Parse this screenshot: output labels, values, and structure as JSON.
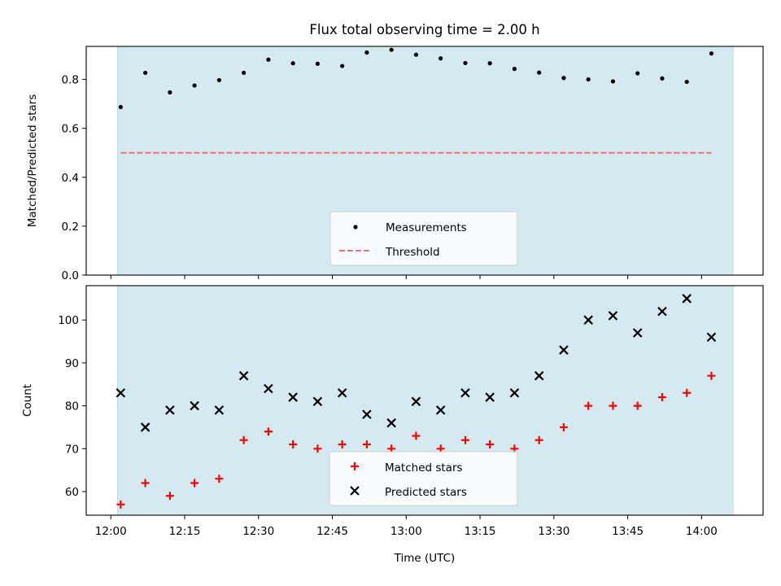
{
  "chart_data": [
    {
      "type": "scatter",
      "title": "Flux total observing time = 2.00 h",
      "xlabel": "",
      "ylabel": "Matched/Predicted stars",
      "ylim": [
        0,
        0.935
      ],
      "yticks": [
        0.0,
        0.2,
        0.4,
        0.6,
        0.8
      ],
      "ytick_labels": [
        "0.0",
        "0.2",
        "0.4",
        "0.6",
        "0.8"
      ],
      "x": [
        "12:02",
        "12:07",
        "12:12",
        "12:17",
        "12:22",
        "12:27",
        "12:32",
        "12:37",
        "12:42",
        "12:47",
        "12:52",
        "12:57",
        "13:02",
        "13:07",
        "13:12",
        "13:17",
        "13:22",
        "13:27",
        "13:32",
        "13:37",
        "13:42",
        "13:47",
        "13:52",
        "13:57",
        "14:02"
      ],
      "series": [
        {
          "name": "Measurements",
          "marker": "dot",
          "color": "#000000",
          "values": [
            0.687,
            0.827,
            0.747,
            0.775,
            0.797,
            0.827,
            0.881,
            0.866,
            0.864,
            0.855,
            0.91,
            0.921,
            0.901,
            0.886,
            0.867,
            0.866,
            0.843,
            0.828,
            0.806,
            0.8,
            0.792,
            0.825,
            0.804,
            0.79,
            0.906
          ]
        },
        {
          "name": "Threshold",
          "style": "dashed",
          "color": "#f07070",
          "values": [
            0.5
          ]
        }
      ],
      "shaded_region": {
        "from": "12:02",
        "to": "14:02",
        "color": "#d4eaf0"
      },
      "legend": "lower-center",
      "grid": false
    },
    {
      "type": "scatter",
      "title": "",
      "xlabel": "Time (UTC)",
      "ylabel": "Count",
      "ylim": [
        54.5,
        108
      ],
      "yticks": [
        60,
        70,
        80,
        90,
        100
      ],
      "ytick_labels": [
        "60",
        "70",
        "80",
        "90",
        "100"
      ],
      "xticks": [
        "12:00",
        "12:15",
        "12:30",
        "12:45",
        "13:00",
        "13:15",
        "13:30",
        "13:45",
        "14:00"
      ],
      "x": [
        "12:02",
        "12:07",
        "12:12",
        "12:17",
        "12:22",
        "12:27",
        "12:32",
        "12:37",
        "12:42",
        "12:47",
        "12:52",
        "12:57",
        "13:02",
        "13:07",
        "13:12",
        "13:17",
        "13:22",
        "13:27",
        "13:32",
        "13:37",
        "13:42",
        "13:47",
        "13:52",
        "13:57",
        "14:02"
      ],
      "series": [
        {
          "name": "Matched stars",
          "marker": "plus",
          "color": "#ff0000",
          "values": [
            57,
            62,
            59,
            62,
            63,
            72,
            74,
            71,
            70,
            71,
            71,
            70,
            73,
            70,
            72,
            71,
            70,
            72,
            75,
            80,
            80,
            80,
            82,
            83,
            87
          ]
        },
        {
          "name": "Predicted stars",
          "marker": "x",
          "color": "#000000",
          "values": [
            83,
            75,
            79,
            80,
            79,
            87,
            84,
            82,
            81,
            83,
            78,
            76,
            81,
            79,
            83,
            82,
            83,
            87,
            93,
            100,
            101,
            97,
            102,
            105,
            96
          ]
        }
      ],
      "shaded_region": {
        "from": "12:02",
        "to": "14:02",
        "color": "#d4eaf0"
      },
      "legend": "lower-center",
      "grid": false
    }
  ]
}
